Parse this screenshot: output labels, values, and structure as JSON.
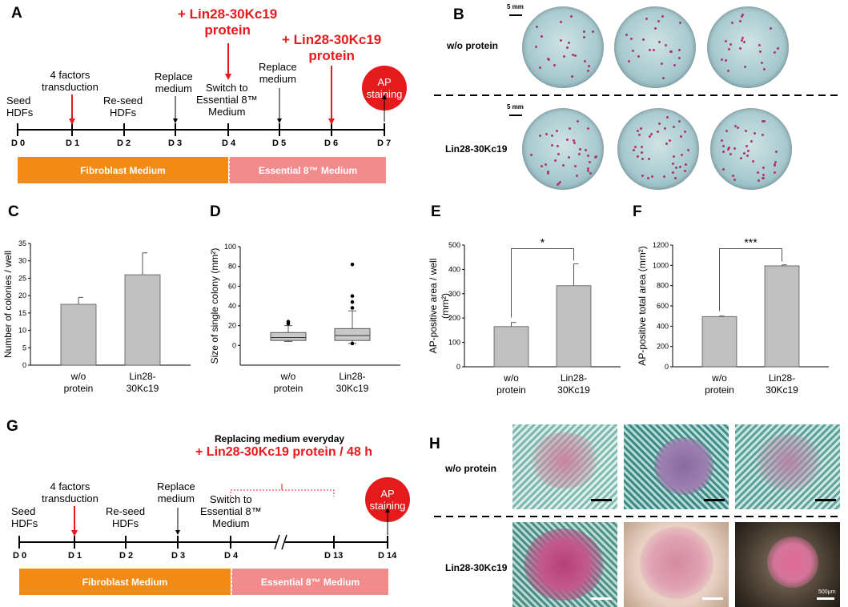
{
  "panels": {
    "A": "A",
    "B": "B",
    "C": "C",
    "D": "D",
    "E": "E",
    "F": "F",
    "G": "G",
    "H": "H"
  },
  "panelA": {
    "events": {
      "seed": "Seed\nHDFs",
      "transduction": "4 factors\ntransduction",
      "reseed": "Re-seed\nHDFs",
      "replace1": "Replace\nmedium",
      "switch": "Switch to\nEssential 8™\nMedium",
      "replace2": "Replace\nmedium",
      "protein1": "+ Lin28-30Kc19\nprotein",
      "protein2": "+ Lin28-30Kc19\nprotein",
      "ap": "AP\nstaining"
    },
    "days": [
      "D 0",
      "D 1",
      "D 2",
      "D 3",
      "D 4",
      "D 5",
      "D 6",
      "D 7"
    ],
    "medium_fibroblast": "Fibroblast Medium",
    "medium_e8": "Essential 8™ Medium"
  },
  "panelB": {
    "row1": "w/o protein",
    "row2": "Lin28-30Kc19",
    "scale1": "5 mm",
    "scale2": "5 mm"
  },
  "panelG": {
    "events": {
      "seed": "Seed\nHDFs",
      "transduction": "4 factors\ntransduction",
      "reseed": "Re-seed\nHDFs",
      "replace": "Replace\nmedium",
      "switch": "Switch to\nEssential 8™\nMedium",
      "ap": "AP\nstaining"
    },
    "replacing": "Replacing medium everyday",
    "protein": "+ Lin28-30Kc19 protein / 48 h",
    "days": [
      "D 0",
      "D 1",
      "D 2",
      "D 3",
      "D 4",
      "D 13",
      "D 14"
    ],
    "medium_fibroblast": "Fibroblast Medium",
    "medium_e8": "Essential 8™ Medium"
  },
  "panelH": {
    "row1": "w/o protein",
    "row2": "Lin28-30Kc19",
    "scale": "500μm"
  },
  "chart_data": [
    {
      "panel": "C",
      "type": "bar",
      "categories": [
        "w/o\nprotein",
        "Lin28-\n30Kc19"
      ],
      "values": [
        17.5,
        26
      ],
      "errors": [
        2,
        6.3
      ],
      "ylabel": "Number of colonies / well",
      "ylim": [
        0,
        35
      ],
      "yticks": [
        0,
        5,
        10,
        15,
        20,
        25,
        30,
        35
      ],
      "bar_color": "#c0c0c0"
    },
    {
      "panel": "D",
      "type": "box",
      "categories": [
        "w/o\nprotein",
        "Lin28-\n30Kc19"
      ],
      "boxes": [
        {
          "min": 4,
          "q1": 5,
          "median": 8,
          "q3": 13,
          "max": 20,
          "outliers": [
            22,
            24
          ]
        },
        {
          "min": 2,
          "q1": 5,
          "median": 10,
          "q3": 17,
          "max": 35,
          "outliers": [
            38,
            44,
            50,
            82,
            2
          ]
        }
      ],
      "ylabel": "Size of single colony (mm²)",
      "ylim": [
        -20,
        100
      ],
      "yticks": [
        0,
        20,
        40,
        60,
        80,
        100
      ]
    },
    {
      "panel": "E",
      "type": "bar",
      "categories": [
        "w/o\nprotein",
        "Lin28-\n30Kc19"
      ],
      "values": [
        165,
        333
      ],
      "errors": [
        17,
        90
      ],
      "ylabel": "AP-positive area / well\n(mm²)",
      "ylim": [
        0,
        500
      ],
      "yticks": [
        0,
        100,
        200,
        300,
        400,
        500
      ],
      "significance": "*",
      "bar_color": "#c0c0c0"
    },
    {
      "panel": "F",
      "type": "bar",
      "categories": [
        "w/o\nprotein",
        "Lin28-\n30Kc19"
      ],
      "values": [
        495,
        995
      ],
      "errors": [
        5,
        10
      ],
      "ylabel": "AP-positive total area (mm²)",
      "ylim": [
        0,
        1200
      ],
      "yticks": [
        0,
        200,
        400,
        600,
        800,
        1000,
        1200
      ],
      "significance": "***",
      "bar_color": "#c0c0c0"
    }
  ]
}
